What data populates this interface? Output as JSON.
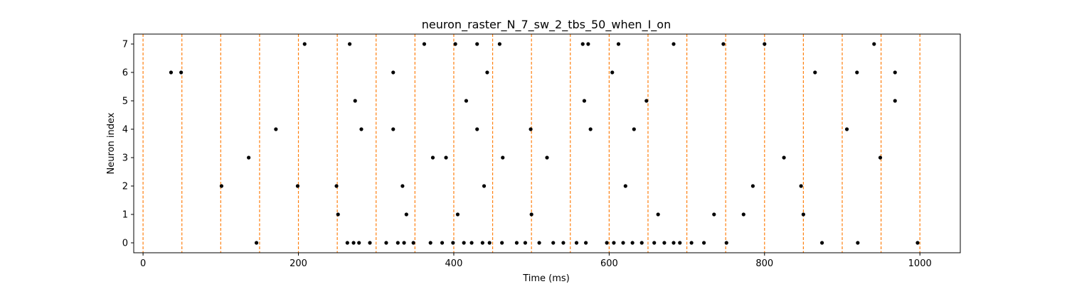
{
  "chart_data": {
    "type": "scatter",
    "title": "neuron_raster_N_7_sw_2_tbs_50_when_I_on",
    "xlabel": "Time (ms)",
    "ylabel": "Neuron index",
    "xlim": [
      -12,
      1052
    ],
    "ylim": [
      -0.35,
      7.35
    ],
    "xticks": [
      0,
      200,
      400,
      600,
      800,
      1000
    ],
    "yticks": [
      0,
      1,
      2,
      3,
      4,
      5,
      6,
      7
    ],
    "grid": false,
    "marker_color": "#000000",
    "vline_color": "#ff7f0e",
    "vlines_x": [
      0,
      50,
      100,
      150,
      200,
      250,
      300,
      350,
      400,
      450,
      500,
      550,
      600,
      650,
      700,
      750,
      800,
      850,
      900,
      950,
      1000
    ],
    "spikes": [
      {
        "neuron": 7,
        "times": [
          208,
          266,
          362,
          402,
          430,
          459,
          566,
          573,
          612,
          683,
          747,
          800,
          941
        ]
      },
      {
        "neuron": 6,
        "times": [
          36,
          49,
          322,
          443,
          604,
          865,
          919,
          968
        ]
      },
      {
        "neuron": 5,
        "times": [
          273,
          416,
          568,
          648,
          968
        ]
      },
      {
        "neuron": 4,
        "times": [
          171,
          281,
          322,
          430,
          499,
          576,
          632,
          906
        ]
      },
      {
        "neuron": 3,
        "times": [
          136,
          373,
          390,
          463,
          520,
          825,
          949
        ]
      },
      {
        "neuron": 2,
        "times": [
          101,
          199,
          249,
          334,
          439,
          621,
          785,
          847
        ]
      },
      {
        "neuron": 1,
        "times": [
          251,
          339,
          405,
          500,
          663,
          735,
          773,
          850
        ]
      },
      {
        "neuron": 0,
        "times": [
          146,
          263,
          271,
          278,
          292,
          313,
          328,
          336,
          348,
          370,
          385,
          399,
          413,
          423,
          437,
          446,
          462,
          481,
          492,
          510,
          528,
          541,
          558,
          570,
          597,
          606,
          618,
          630,
          642,
          658,
          671,
          683,
          691,
          706,
          722,
          751,
          874,
          920,
          997
        ]
      }
    ]
  }
}
